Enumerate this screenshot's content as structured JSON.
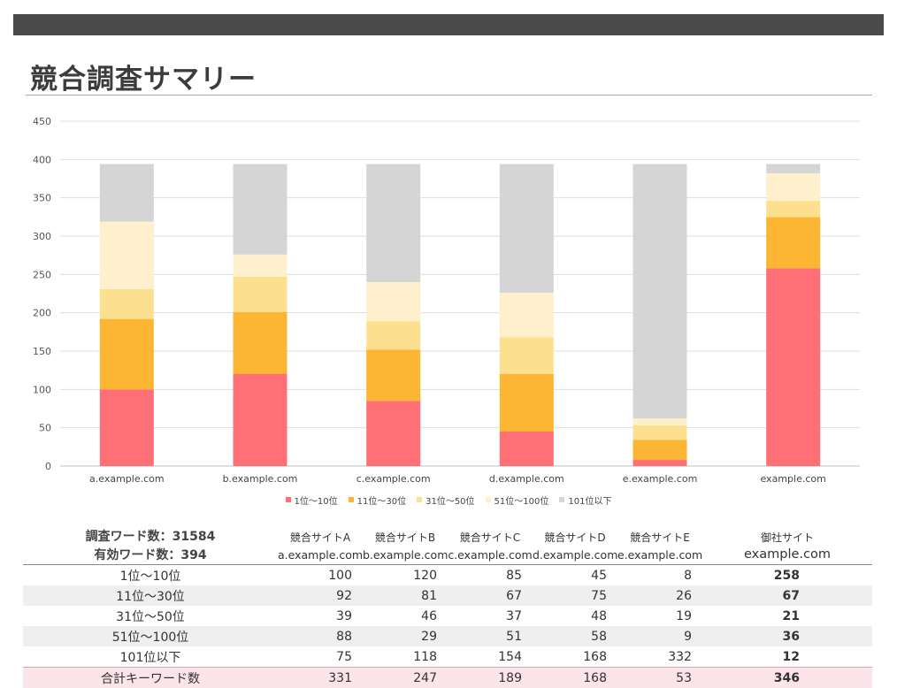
{
  "page": {
    "title": "競合調査サマリー"
  },
  "chart_data": {
    "type": "bar",
    "stacked": true,
    "categories": [
      "a.example.com",
      "b.example.com",
      "c.example.com",
      "d.example.com",
      "e.example.com",
      "example.com"
    ],
    "series": [
      {
        "name": "1位～10位",
        "color": "#ff6f76",
        "values": [
          100,
          120,
          85,
          45,
          8,
          258
        ]
      },
      {
        "name": "11位～30位",
        "color": "#fcb634",
        "values": [
          92,
          81,
          67,
          75,
          26,
          67
        ]
      },
      {
        "name": "31位～50位",
        "color": "#fce090",
        "values": [
          39,
          46,
          37,
          48,
          19,
          21
        ]
      },
      {
        "name": "51位～100位",
        "color": "#fef0cc",
        "values": [
          88,
          29,
          51,
          58,
          9,
          36
        ]
      },
      {
        "name": "101位以下",
        "color": "#d5d5d5",
        "values": [
          75,
          118,
          154,
          168,
          332,
          12
        ]
      }
    ],
    "ylim": [
      0,
      450
    ],
    "yticks": [
      0,
      50,
      100,
      150,
      200,
      250,
      300,
      350,
      400,
      450
    ],
    "grid": true,
    "legend_position": "bottom",
    "title": "",
    "xlabel": "",
    "ylabel": ""
  },
  "table": {
    "stats": {
      "survey_words": "調査ワード数：31584",
      "valid_words": "有効ワード数：394"
    },
    "columns": [
      {
        "name": "競合サイトA",
        "domain": "a.example.com"
      },
      {
        "name": "競合サイトB",
        "domain": "b.example.com"
      },
      {
        "name": "競合サイトC",
        "domain": "c.example.com"
      },
      {
        "name": "競合サイトD",
        "domain": "d.example.com"
      },
      {
        "name": "競合サイトE",
        "domain": "e.example.com"
      },
      {
        "name": "御社サイト",
        "domain": "example.com"
      }
    ],
    "rows": [
      {
        "label": "1位～10位",
        "values": [
          "100",
          "120",
          "85",
          "45",
          "8",
          "258"
        ]
      },
      {
        "label": "11位～30位",
        "values": [
          "92",
          "81",
          "67",
          "75",
          "26",
          "67"
        ]
      },
      {
        "label": "31位～50位",
        "values": [
          "39",
          "46",
          "37",
          "48",
          "19",
          "21"
        ]
      },
      {
        "label": "51位～100位",
        "values": [
          "88",
          "29",
          "51",
          "58",
          "9",
          "36"
        ]
      },
      {
        "label": "101位以下",
        "values": [
          "75",
          "118",
          "154",
          "168",
          "332",
          "12"
        ]
      }
    ],
    "total": {
      "label": "合計キーワード数",
      "values": [
        "331",
        "247",
        "189",
        "168",
        "53",
        "346"
      ]
    }
  }
}
